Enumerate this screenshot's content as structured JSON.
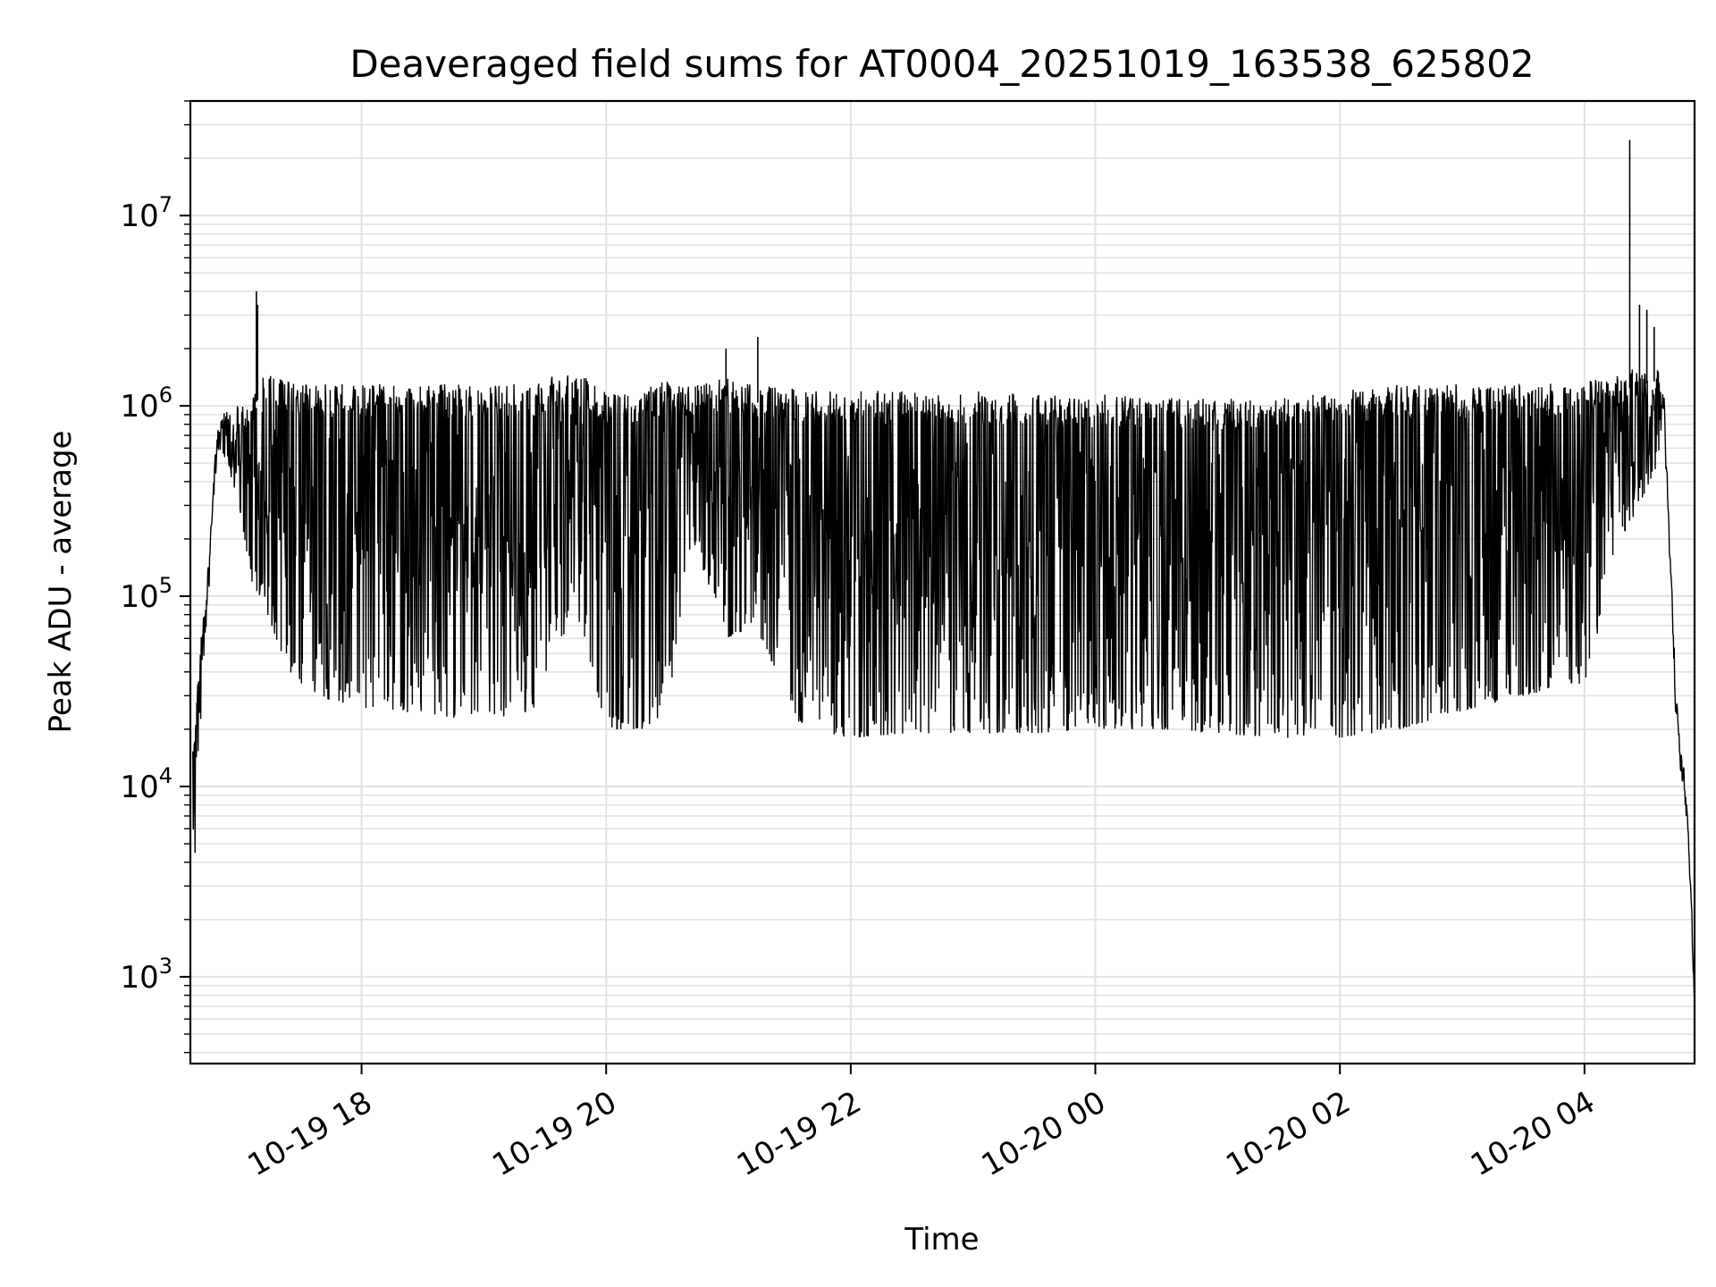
{
  "chart_data": {
    "type": "line",
    "title": "Deaveraged field sums for AT0004_20251019_163538_625802",
    "xlabel": "Time",
    "ylabel": "Peak ADU - average",
    "yscale": "log",
    "ylim": [
      350,
      40000000
    ],
    "xlim_hours": [
      16.6,
      28.9
    ],
    "grid": true,
    "line_color": "#000000",
    "x_ticks": [
      {
        "hour": 18,
        "label": "10-19 18"
      },
      {
        "hour": 20,
        "label": "10-19 20"
      },
      {
        "hour": 22,
        "label": "10-19 22"
      },
      {
        "hour": 24,
        "label": "10-20 00"
      },
      {
        "hour": 26,
        "label": "10-20 02"
      },
      {
        "hour": 28,
        "label": "10-20 04"
      }
    ],
    "y_ticks": [
      {
        "value": 1000,
        "base": "10",
        "exp": "3"
      },
      {
        "value": 10000,
        "base": "10",
        "exp": "4"
      },
      {
        "value": 100000,
        "base": "10",
        "exp": "5"
      },
      {
        "value": 1000000,
        "base": "10",
        "exp": "6"
      },
      {
        "value": 10000000,
        "base": "10",
        "exp": "7"
      }
    ],
    "series": [
      {
        "name": "Peak ADU - average",
        "envelope": {
          "hours": [
            16.62,
            16.65,
            16.7,
            16.75,
            16.8,
            16.85,
            16.9,
            17.0,
            17.1,
            17.2,
            17.4,
            17.6,
            18.0,
            18.5,
            19.0,
            19.4,
            19.6,
            19.8,
            20.0,
            20.3,
            20.5,
            20.7,
            21.0,
            21.2,
            21.4,
            21.6,
            22.0,
            22.5,
            23.0,
            23.5,
            24.0,
            24.5,
            25.0,
            25.5,
            26.0,
            26.5,
            27.0,
            27.5,
            28.0,
            28.1,
            28.2,
            28.3,
            28.45,
            28.6,
            28.65,
            28.75,
            28.8,
            28.85,
            28.9
          ],
          "top": [
            20000,
            30000,
            80000,
            150000,
            600000,
            1000000,
            1000000,
            1000000,
            1200000,
            1500000,
            1400000,
            1300000,
            1300000,
            1300000,
            1300000,
            1300000,
            1500000,
            1500000,
            1200000,
            1200000,
            1400000,
            1300000,
            1400000,
            1300000,
            1300000,
            1200000,
            1200000,
            1200000,
            1200000,
            1150000,
            1150000,
            1150000,
            1100000,
            1100000,
            1200000,
            1300000,
            1300000,
            1300000,
            1350000,
            1400000,
            1400000,
            1500000,
            1600000,
            1700000,
            1200000,
            30000,
            15000,
            8000,
            900
          ],
          "bottom": [
            2500,
            6000,
            40000,
            100000,
            500000,
            600000,
            500000,
            300000,
            120000,
            90000,
            40000,
            30000,
            26000,
            24000,
            22000,
            25000,
            60000,
            70000,
            20000,
            20000,
            25000,
            200000,
            60000,
            70000,
            40000,
            20000,
            18000,
            19000,
            19000,
            19000,
            20000,
            20000,
            19000,
            18000,
            18000,
            20000,
            25000,
            30000,
            35000,
            60000,
            150000,
            200000,
            300000,
            500000,
            1000000,
            20000,
            12000,
            5000,
            700
          ]
        },
        "spikes": [
          {
            "hour": 17.14,
            "value": 4000000
          },
          {
            "hour": 17.15,
            "value": 3400000
          },
          {
            "hour": 20.98,
            "value": 2000000
          },
          {
            "hour": 21.24,
            "value": 2300000
          },
          {
            "hour": 28.37,
            "value": 25000000
          },
          {
            "hour": 28.45,
            "value": 3400000
          },
          {
            "hour": 28.51,
            "value": 3200000
          },
          {
            "hour": 28.57,
            "value": 2600000
          }
        ]
      }
    ]
  }
}
